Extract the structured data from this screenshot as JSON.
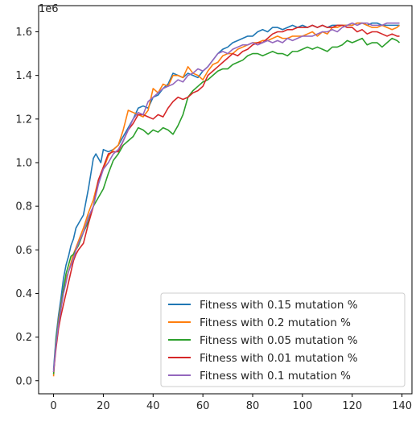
{
  "chart_data": {
    "type": "line",
    "title": "",
    "xlabel": "",
    "ylabel": "",
    "y_offset_label": "1e6",
    "xlim": [
      -6,
      144
    ],
    "ylim": [
      -0.06,
      1.72
    ],
    "x_ticks": [
      0,
      20,
      40,
      60,
      80,
      100,
      120,
      140
    ],
    "x_tick_labels": [
      "0",
      "20",
      "40",
      "60",
      "80",
      "100",
      "120",
      "140"
    ],
    "y_ticks": [
      0.0,
      0.2,
      0.4,
      0.6,
      0.8,
      1.0,
      1.2,
      1.4,
      1.6
    ],
    "y_tick_labels": [
      "0.0",
      "0.2",
      "0.4",
      "0.6",
      "0.8",
      "1.0",
      "1.2",
      "1.4",
      "1.6"
    ],
    "grid": false,
    "legend_position": "lower-right",
    "series": [
      {
        "name": "Fitness with 0.15 mutation %",
        "color": "#1f77b4",
        "x": [
          0,
          1,
          2,
          3,
          4,
          5,
          6,
          7,
          8,
          9,
          10,
          12,
          14,
          15,
          16,
          17,
          18,
          19,
          20,
          22,
          24,
          26,
          28,
          30,
          32,
          34,
          36,
          38,
          40,
          42,
          44,
          46,
          48,
          50,
          52,
          54,
          56,
          58,
          60,
          62,
          64,
          66,
          68,
          70,
          72,
          74,
          76,
          78,
          80,
          82,
          84,
          86,
          88,
          90,
          92,
          94,
          96,
          98,
          100,
          102,
          104,
          106,
          108,
          110,
          112,
          114,
          116,
          118,
          120,
          122,
          124,
          126,
          128,
          130,
          132,
          134,
          136,
          138,
          139
        ],
        "y": [
          0.05,
          0.2,
          0.3,
          0.38,
          0.47,
          0.53,
          0.57,
          0.62,
          0.65,
          0.7,
          0.72,
          0.76,
          0.88,
          0.95,
          1.02,
          1.04,
          1.02,
          1.0,
          1.06,
          1.05,
          1.06,
          1.08,
          1.12,
          1.16,
          1.2,
          1.25,
          1.26,
          1.25,
          1.3,
          1.31,
          1.34,
          1.36,
          1.41,
          1.4,
          1.39,
          1.41,
          1.4,
          1.39,
          1.42,
          1.44,
          1.47,
          1.5,
          1.52,
          1.53,
          1.55,
          1.56,
          1.57,
          1.58,
          1.58,
          1.6,
          1.61,
          1.6,
          1.62,
          1.62,
          1.61,
          1.62,
          1.63,
          1.62,
          1.63,
          1.62,
          1.63,
          1.62,
          1.63,
          1.62,
          1.63,
          1.63,
          1.63,
          1.63,
          1.63,
          1.64,
          1.64,
          1.63,
          1.64,
          1.64,
          1.63,
          1.63,
          1.63,
          1.63,
          1.63
        ]
      },
      {
        "name": "Fitness with 0.2 mutation %",
        "color": "#ff7f0e",
        "x": [
          0,
          1,
          2,
          3,
          4,
          5,
          6,
          7,
          8,
          9,
          10,
          12,
          14,
          16,
          18,
          20,
          22,
          24,
          26,
          28,
          30,
          32,
          34,
          36,
          38,
          40,
          42,
          44,
          46,
          48,
          50,
          52,
          54,
          56,
          58,
          60,
          62,
          64,
          66,
          68,
          70,
          72,
          74,
          76,
          78,
          80,
          82,
          84,
          86,
          88,
          90,
          92,
          94,
          96,
          98,
          100,
          102,
          104,
          106,
          108,
          110,
          112,
          114,
          116,
          118,
          120,
          122,
          124,
          126,
          128,
          130,
          132,
          134,
          136,
          138,
          139
        ],
        "y": [
          0.02,
          0.18,
          0.28,
          0.35,
          0.42,
          0.47,
          0.5,
          0.54,
          0.58,
          0.61,
          0.64,
          0.7,
          0.77,
          0.83,
          0.92,
          0.97,
          1.03,
          1.06,
          1.08,
          1.15,
          1.24,
          1.23,
          1.22,
          1.21,
          1.24,
          1.34,
          1.32,
          1.36,
          1.35,
          1.4,
          1.4,
          1.39,
          1.44,
          1.41,
          1.4,
          1.38,
          1.42,
          1.45,
          1.46,
          1.49,
          1.5,
          1.5,
          1.52,
          1.53,
          1.54,
          1.55,
          1.55,
          1.56,
          1.56,
          1.57,
          1.58,
          1.57,
          1.57,
          1.58,
          1.58,
          1.58,
          1.59,
          1.6,
          1.58,
          1.6,
          1.59,
          1.62,
          1.62,
          1.63,
          1.63,
          1.63,
          1.64,
          1.64,
          1.63,
          1.62,
          1.62,
          1.63,
          1.62,
          1.61,
          1.62,
          1.63
        ]
      },
      {
        "name": "Fitness with 0.05 mutation %",
        "color": "#2ca02c",
        "x": [
          0,
          1,
          2,
          3,
          4,
          5,
          6,
          7,
          8,
          9,
          10,
          12,
          14,
          16,
          18,
          20,
          22,
          24,
          26,
          28,
          30,
          32,
          34,
          36,
          38,
          40,
          42,
          44,
          46,
          48,
          50,
          52,
          54,
          56,
          58,
          60,
          62,
          64,
          66,
          68,
          70,
          72,
          74,
          76,
          78,
          80,
          82,
          84,
          86,
          88,
          90,
          92,
          94,
          96,
          98,
          100,
          102,
          104,
          106,
          108,
          110,
          112,
          114,
          116,
          118,
          120,
          122,
          124,
          126,
          128,
          130,
          132,
          134,
          136,
          138,
          139
        ],
        "y": [
          0.03,
          0.19,
          0.27,
          0.34,
          0.42,
          0.49,
          0.53,
          0.57,
          0.58,
          0.6,
          0.62,
          0.68,
          0.73,
          0.8,
          0.84,
          0.88,
          0.95,
          1.01,
          1.04,
          1.08,
          1.1,
          1.12,
          1.16,
          1.15,
          1.13,
          1.15,
          1.14,
          1.16,
          1.15,
          1.13,
          1.17,
          1.22,
          1.3,
          1.33,
          1.35,
          1.37,
          1.38,
          1.4,
          1.42,
          1.43,
          1.43,
          1.45,
          1.46,
          1.47,
          1.49,
          1.5,
          1.5,
          1.49,
          1.5,
          1.51,
          1.5,
          1.5,
          1.49,
          1.51,
          1.51,
          1.52,
          1.53,
          1.52,
          1.53,
          1.52,
          1.51,
          1.53,
          1.53,
          1.54,
          1.56,
          1.55,
          1.56,
          1.57,
          1.54,
          1.55,
          1.55,
          1.53,
          1.55,
          1.57,
          1.56,
          1.55
        ]
      },
      {
        "name": "Fitness with 0.01 mutation %",
        "color": "#d62728",
        "x": [
          0,
          1,
          2,
          3,
          4,
          5,
          6,
          7,
          8,
          9,
          10,
          12,
          14,
          16,
          18,
          20,
          22,
          24,
          26,
          28,
          30,
          32,
          34,
          36,
          38,
          40,
          42,
          44,
          46,
          48,
          50,
          52,
          54,
          56,
          58,
          60,
          62,
          64,
          66,
          68,
          70,
          72,
          74,
          76,
          78,
          80,
          82,
          84,
          86,
          88,
          90,
          92,
          94,
          96,
          98,
          100,
          102,
          104,
          106,
          108,
          110,
          112,
          114,
          116,
          118,
          120,
          122,
          124,
          126,
          128,
          130,
          132,
          134,
          136,
          138,
          139
        ],
        "y": [
          0.04,
          0.15,
          0.24,
          0.3,
          0.35,
          0.4,
          0.45,
          0.5,
          0.55,
          0.58,
          0.6,
          0.63,
          0.72,
          0.8,
          0.92,
          0.98,
          1.04,
          1.05,
          1.05,
          1.1,
          1.15,
          1.18,
          1.22,
          1.22,
          1.21,
          1.2,
          1.22,
          1.21,
          1.25,
          1.28,
          1.3,
          1.29,
          1.3,
          1.32,
          1.33,
          1.35,
          1.4,
          1.42,
          1.44,
          1.46,
          1.48,
          1.5,
          1.49,
          1.51,
          1.52,
          1.54,
          1.55,
          1.55,
          1.57,
          1.59,
          1.6,
          1.6,
          1.61,
          1.61,
          1.62,
          1.62,
          1.62,
          1.63,
          1.62,
          1.63,
          1.62,
          1.62,
          1.63,
          1.63,
          1.62,
          1.62,
          1.6,
          1.61,
          1.59,
          1.6,
          1.6,
          1.59,
          1.58,
          1.59,
          1.58,
          1.58
        ]
      },
      {
        "name": "Fitness with 0.1 mutation %",
        "color": "#9467bd",
        "x": [
          0,
          1,
          2,
          3,
          4,
          5,
          6,
          7,
          8,
          9,
          10,
          12,
          14,
          16,
          18,
          20,
          22,
          24,
          26,
          28,
          30,
          32,
          34,
          36,
          38,
          40,
          42,
          44,
          46,
          48,
          50,
          52,
          54,
          56,
          58,
          60,
          62,
          64,
          66,
          68,
          70,
          72,
          74,
          76,
          78,
          80,
          82,
          84,
          86,
          88,
          90,
          92,
          94,
          96,
          98,
          100,
          102,
          104,
          106,
          108,
          110,
          112,
          114,
          116,
          118,
          120,
          122,
          124,
          126,
          128,
          130,
          132,
          134,
          136,
          138,
          139
        ],
        "y": [
          0.04,
          0.17,
          0.26,
          0.33,
          0.4,
          0.45,
          0.5,
          0.53,
          0.56,
          0.6,
          0.63,
          0.68,
          0.75,
          0.8,
          0.9,
          0.97,
          1.0,
          1.04,
          1.06,
          1.1,
          1.15,
          1.2,
          1.23,
          1.22,
          1.28,
          1.3,
          1.32,
          1.34,
          1.35,
          1.36,
          1.38,
          1.37,
          1.4,
          1.41,
          1.43,
          1.42,
          1.44,
          1.47,
          1.5,
          1.51,
          1.5,
          1.52,
          1.53,
          1.54,
          1.54,
          1.55,
          1.54,
          1.55,
          1.56,
          1.55,
          1.56,
          1.55,
          1.57,
          1.56,
          1.57,
          1.58,
          1.58,
          1.58,
          1.59,
          1.6,
          1.6,
          1.61,
          1.6,
          1.62,
          1.63,
          1.64,
          1.63,
          1.64,
          1.64,
          1.63,
          1.63,
          1.63,
          1.64,
          1.64,
          1.64,
          1.64
        ]
      }
    ]
  }
}
